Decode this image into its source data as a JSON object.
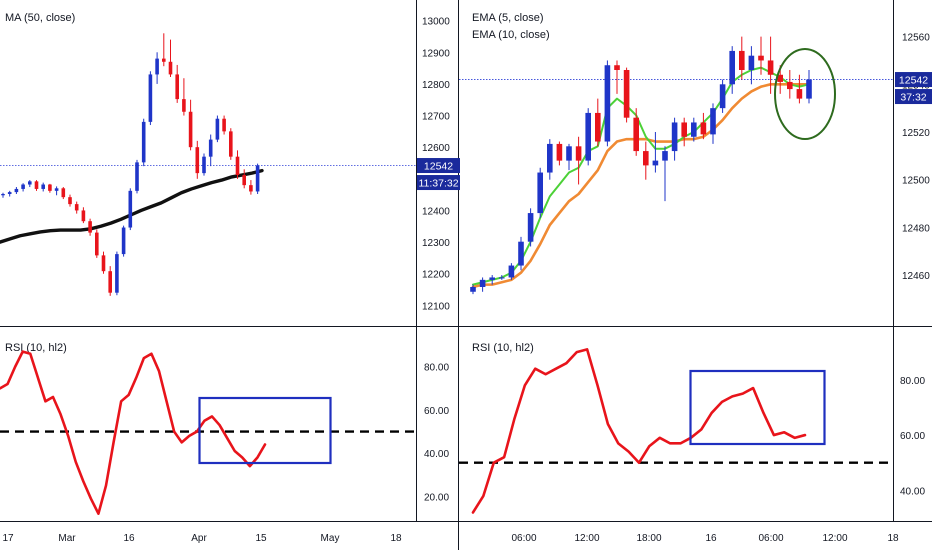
{
  "colors": {
    "up": "#1f35c8",
    "down": "#e8141b",
    "ma": "#111111",
    "ema_fast": "#4cd137",
    "ema_slow": "#f08a33",
    "rsi": "#e8141b",
    "price_line": "#2c3fd8",
    "price_tag": "#1a2a9c",
    "box": "#1f2fbf",
    "circle": "#2e6b1e",
    "axis_text": "#131722",
    "dashed": "#000000"
  },
  "chart_data": [
    {
      "type": "candlestick",
      "title": "MA (50, close)",
      "ylim": [
        12060,
        13040
      ],
      "y_ticks": [
        12100,
        12200,
        12300,
        12400,
        12500,
        12600,
        12700,
        12800,
        12900,
        13000
      ],
      "x_ticks": [
        "17",
        "Mar",
        "16",
        "Apr",
        "15",
        "May",
        "18"
      ],
      "last_price_label": "12542",
      "countdown_label": "11:37:32",
      "candles": [
        [
          12448,
          12456,
          12440,
          12452
        ],
        [
          12452,
          12462,
          12444,
          12458
        ],
        [
          12458,
          12474,
          12452,
          12468
        ],
        [
          12468,
          12486,
          12460,
          12482
        ],
        [
          12482,
          12496,
          12474,
          12492
        ],
        [
          12492,
          12496,
          12462,
          12468
        ],
        [
          12468,
          12488,
          12460,
          12482
        ],
        [
          12482,
          12484,
          12456,
          12462
        ],
        [
          12462,
          12476,
          12448,
          12470
        ],
        [
          12470,
          12474,
          12436,
          12442
        ],
        [
          12442,
          12450,
          12412,
          12420
        ],
        [
          12420,
          12428,
          12390,
          12400
        ],
        [
          12400,
          12410,
          12360,
          12366
        ],
        [
          12366,
          12374,
          12320,
          12330
        ],
        [
          12330,
          12340,
          12250,
          12258
        ],
        [
          12258,
          12270,
          12200,
          12208
        ],
        [
          12208,
          12224,
          12130,
          12140
        ],
        [
          12140,
          12270,
          12132,
          12262
        ],
        [
          12262,
          12352,
          12254,
          12346
        ],
        [
          12346,
          12470,
          12338,
          12462
        ],
        [
          12462,
          12560,
          12454,
          12552
        ],
        [
          12552,
          12690,
          12540,
          12680
        ],
        [
          12680,
          12840,
          12670,
          12830
        ],
        [
          12830,
          12900,
          12800,
          12880
        ],
        [
          12880,
          12960,
          12856,
          12870
        ],
        [
          12870,
          12940,
          12822,
          12830
        ],
        [
          12830,
          12860,
          12740,
          12752
        ],
        [
          12752,
          12818,
          12700,
          12712
        ],
        [
          12712,
          12750,
          12590,
          12600
        ],
        [
          12600,
          12620,
          12500,
          12518
        ],
        [
          12518,
          12580,
          12510,
          12570
        ],
        [
          12570,
          12640,
          12540,
          12624
        ],
        [
          12624,
          12700,
          12616,
          12690
        ],
        [
          12690,
          12700,
          12640,
          12650
        ],
        [
          12650,
          12660,
          12560,
          12570
        ],
        [
          12570,
          12590,
          12500,
          12512
        ],
        [
          12512,
          12530,
          12470,
          12480
        ],
        [
          12480,
          12496,
          12450,
          12460
        ],
        [
          12460,
          12548,
          12452,
          12542
        ]
      ],
      "ma": [
        12300,
        12310,
        12320,
        12326,
        12332,
        12336,
        12338,
        12338,
        12338,
        12342,
        12350,
        12360,
        12372,
        12386,
        12400,
        12412,
        12424,
        12440,
        12456,
        12468,
        12478,
        12488,
        12496,
        12506,
        12512,
        12518,
        12526
      ]
    },
    {
      "type": "candlestick",
      "title": "EMA (5, close)",
      "subtitle": "EMA (10, close)",
      "ylim": [
        12442,
        12572
      ],
      "y_ticks": [
        12460,
        12480,
        12500,
        12520,
        12540,
        12560
      ],
      "x_ticks": [
        "06:00",
        "12:00",
        "18:00",
        "16",
        "06:00",
        "12:00",
        "18"
      ],
      "last_price_label": "12542",
      "countdown_label": "37:32",
      "candles": [
        [
          12453,
          12456,
          12452,
          12455
        ],
        [
          12455,
          12459,
          12453,
          12458
        ],
        [
          12458,
          12460,
          12456,
          12459
        ],
        [
          12459,
          12460,
          12458,
          12459
        ],
        [
          12459,
          12465,
          12458,
          12464
        ],
        [
          12464,
          12476,
          12462,
          12474
        ],
        [
          12474,
          12488,
          12472,
          12486
        ],
        [
          12486,
          12505,
          12484,
          12503
        ],
        [
          12503,
          12517,
          12500,
          12515
        ],
        [
          12515,
          12516,
          12506,
          12508
        ],
        [
          12508,
          12515,
          12504,
          12514
        ],
        [
          12514,
          12518,
          12498,
          12508
        ],
        [
          12508,
          12530,
          12506,
          12528
        ],
        [
          12528,
          12534,
          12514,
          12516
        ],
        [
          12516,
          12550,
          12514,
          12548
        ],
        [
          12548,
          12550,
          12536,
          12546
        ],
        [
          12546,
          12547,
          12524,
          12526
        ],
        [
          12526,
          12530,
          12510,
          12512
        ],
        [
          12512,
          12516,
          12500,
          12506
        ],
        [
          12506,
          12520,
          12503,
          12508
        ],
        [
          12508,
          12514,
          12491,
          12512
        ],
        [
          12512,
          12526,
          12508,
          12524
        ],
        [
          12524,
          12526,
          12514,
          12518
        ],
        [
          12518,
          12526,
          12516,
          12524
        ],
        [
          12524,
          12528,
          12517,
          12519
        ],
        [
          12519,
          12532,
          12515,
          12530
        ],
        [
          12530,
          12542,
          12528,
          12540
        ],
        [
          12540,
          12556,
          12536,
          12554
        ],
        [
          12554,
          12560,
          12542,
          12546
        ],
        [
          12546,
          12556,
          12540,
          12552
        ],
        [
          12552,
          12560,
          12544,
          12550
        ],
        [
          12550,
          12560,
          12536,
          12544
        ],
        [
          12544,
          12548,
          12536,
          12541
        ],
        [
          12541,
          12546,
          12534,
          12538
        ],
        [
          12538,
          12544,
          12532,
          12534
        ],
        [
          12534,
          12546,
          12532,
          12542
        ]
      ],
      "ema5": [
        12456,
        12457,
        12458,
        12459,
        12461,
        12466,
        12474,
        12484,
        12493,
        12498,
        12503,
        12505,
        12512,
        12514,
        12530,
        12534,
        12531,
        12527,
        12518,
        12513,
        12513,
        12515,
        12518,
        12520,
        12524,
        12528,
        12534,
        12541,
        12544,
        12546,
        12547,
        12545,
        12543,
        12540,
        12539,
        12540
      ],
      "ema10": [
        12455,
        12456,
        12456,
        12457,
        12458,
        12461,
        12466,
        12473,
        12481,
        12486,
        12491,
        12494,
        12499,
        12504,
        12512,
        12516,
        12517,
        12517,
        12517,
        12516,
        12516,
        12516,
        12517,
        12517,
        12518,
        12521,
        12525,
        12530,
        12534,
        12537,
        12539,
        12540,
        12540,
        12540,
        12540,
        12540
      ]
    },
    {
      "type": "line",
      "title": "RSI (10, hl2)",
      "ylim": [
        10,
        97
      ],
      "y_ticks": [
        20,
        40,
        60,
        80
      ],
      "y_tick_labels": [
        "20.00",
        "40.00",
        "60.00",
        "80.00"
      ],
      "reference_level": 50,
      "values": [
        70,
        72,
        80,
        87,
        86,
        75,
        64,
        66,
        58,
        48,
        36,
        27,
        19,
        12,
        25,
        45,
        64,
        67,
        75,
        84,
        86,
        78,
        64,
        50,
        45,
        48,
        50,
        55,
        57,
        53,
        47,
        41,
        38,
        34,
        38,
        44
      ]
    },
    {
      "type": "line",
      "title": "RSI (10, hl2)",
      "ylim": [
        30,
        98
      ],
      "y_ticks": [
        40,
        60,
        80
      ],
      "y_tick_labels": [
        "40.00",
        "60.00",
        "80.00"
      ],
      "reference_level": 50,
      "values": [
        32,
        38,
        50,
        52,
        66,
        78,
        84,
        82,
        84,
        86,
        90,
        91,
        78,
        64,
        57,
        54,
        50,
        56,
        59,
        57,
        57,
        59,
        62,
        68,
        72,
        74,
        75,
        77,
        68,
        60,
        61,
        59,
        60
      ]
    }
  ]
}
